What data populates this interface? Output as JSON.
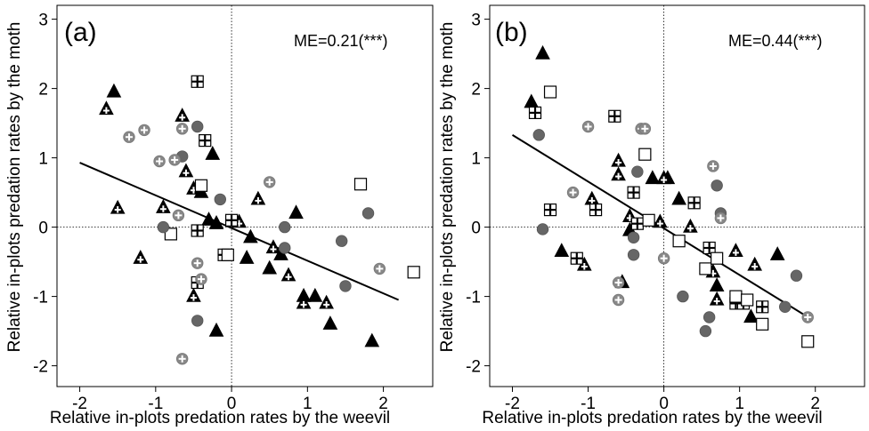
{
  "chart_data": [
    {
      "type": "scatter",
      "panel": "(a)",
      "annotation": "ME=0.21(***)",
      "xlabel": "Relative in-plots predation rates by the weevil",
      "ylabel": "Relative in-plots predation rates by the moth",
      "xlim": [
        -2.3,
        2.65
      ],
      "ylim": [
        -2.3,
        3.2
      ],
      "xticks": [
        -2,
        -1,
        0,
        1,
        2
      ],
      "yticks": [
        -2,
        -1,
        0,
        1,
        2,
        3
      ],
      "fit_line": {
        "x1": -2.0,
        "y1": 0.93,
        "x2": 2.2,
        "y2": -1.05
      },
      "groups": [
        {
          "marker": "filled-triangle",
          "points": [
            [
              -1.55,
              1.95
            ],
            [
              -0.25,
              1.05
            ],
            [
              -0.2,
              -1.5
            ],
            [
              0.2,
              -0.45
            ],
            [
              0.25,
              -0.15
            ],
            [
              0.5,
              -0.6
            ],
            [
              0.65,
              -0.4
            ],
            [
              0.85,
              0.2
            ],
            [
              0.95,
              -1.0
            ],
            [
              1.1,
              -1.0
            ],
            [
              1.3,
              -1.4
            ],
            [
              1.85,
              -1.65
            ],
            [
              -0.3,
              0.1
            ],
            [
              -0.4,
              0.5
            ],
            [
              -0.2,
              0.05
            ]
          ]
        },
        {
          "marker": "cross-triangle",
          "points": [
            [
              -1.65,
              1.7
            ],
            [
              -1.5,
              0.27
            ],
            [
              -1.2,
              -0.45
            ],
            [
              -0.9,
              0.28
            ],
            [
              -0.65,
              1.6
            ],
            [
              -0.6,
              0.8
            ],
            [
              -0.5,
              0.55
            ],
            [
              0.1,
              0.07
            ],
            [
              0.35,
              0.4
            ],
            [
              0.55,
              -0.3
            ],
            [
              0.75,
              -0.7
            ],
            [
              0.95,
              -1.1
            ],
            [
              1.25,
              -1.1
            ],
            [
              -0.5,
              -1.0
            ]
          ]
        },
        {
          "marker": "cross-square",
          "points": [
            [
              -0.45,
              2.1
            ],
            [
              -0.35,
              1.25
            ],
            [
              -0.45,
              -0.05
            ],
            [
              -0.45,
              -0.8
            ],
            [
              -0.1,
              -0.4
            ],
            [
              0.0,
              0.1
            ]
          ]
        },
        {
          "marker": "open-square",
          "points": [
            [
              -0.8,
              -0.1
            ],
            [
              -0.4,
              0.6
            ],
            [
              -0.05,
              -0.4
            ],
            [
              1.7,
              0.62
            ],
            [
              2.4,
              -0.65
            ]
          ]
        },
        {
          "marker": "filled-circle",
          "points": [
            [
              -0.9,
              0.0
            ],
            [
              -0.65,
              1.02
            ],
            [
              -0.45,
              1.45
            ],
            [
              -0.45,
              -1.35
            ],
            [
              -0.15,
              0.4
            ],
            [
              0.7,
              0.0
            ],
            [
              0.7,
              -0.3
            ],
            [
              1.45,
              -0.2
            ],
            [
              1.5,
              -0.85
            ],
            [
              1.8,
              0.2
            ]
          ]
        },
        {
          "marker": "cross-circle",
          "points": [
            [
              -1.35,
              1.3
            ],
            [
              -1.15,
              1.4
            ],
            [
              -0.95,
              0.95
            ],
            [
              -0.75,
              0.97
            ],
            [
              -0.65,
              1.42
            ],
            [
              -0.7,
              0.17
            ],
            [
              -0.45,
              -0.52
            ],
            [
              -0.4,
              -0.75
            ],
            [
              -0.65,
              -1.9
            ],
            [
              0.5,
              0.65
            ],
            [
              1.95,
              -0.6
            ]
          ]
        }
      ]
    },
    {
      "type": "scatter",
      "panel": "(b)",
      "annotation": "ME=0.44(***)",
      "xlabel": "Relative in-plots predation rates by the weevil",
      "ylabel": "Relative in-plots predation rates by the moth",
      "xlim": [
        -2.3,
        2.65
      ],
      "ylim": [
        -2.3,
        3.2
      ],
      "xticks": [
        -2,
        -1,
        0,
        1,
        2
      ],
      "yticks": [
        -2,
        -1,
        0,
        1,
        2,
        3
      ],
      "fit_line": {
        "x1": -2.0,
        "y1": 1.33,
        "x2": 1.95,
        "y2": -1.33
      },
      "groups": [
        {
          "marker": "filled-triangle",
          "points": [
            [
              -1.75,
              1.8
            ],
            [
              -1.6,
              2.5
            ],
            [
              -1.35,
              -0.35
            ],
            [
              -0.55,
              -0.8
            ],
            [
              -0.45,
              -0.05
            ],
            [
              -0.15,
              0.7
            ],
            [
              0.05,
              0.7
            ],
            [
              0.2,
              0.4
            ],
            [
              0.7,
              -0.85
            ],
            [
              1.15,
              -1.3
            ],
            [
              1.5,
              -0.4
            ]
          ]
        },
        {
          "marker": "cross-triangle",
          "points": [
            [
              -1.05,
              -0.55
            ],
            [
              -0.95,
              0.4
            ],
            [
              -0.6,
              0.95
            ],
            [
              -0.6,
              0.75
            ],
            [
              -0.45,
              0.15
            ],
            [
              0.0,
              0.7
            ],
            [
              0.35,
              0.0
            ],
            [
              0.65,
              -0.65
            ],
            [
              0.7,
              -1.05
            ],
            [
              0.95,
              -0.35
            ],
            [
              1.2,
              -0.55
            ],
            [
              -0.05,
              0.07
            ]
          ]
        },
        {
          "marker": "cross-square",
          "points": [
            [
              -1.7,
              1.65
            ],
            [
              -1.5,
              0.25
            ],
            [
              -1.15,
              -0.45
            ],
            [
              -0.9,
              0.25
            ],
            [
              -0.65,
              1.6
            ],
            [
              -0.4,
              0.5
            ],
            [
              -0.35,
              0.05
            ],
            [
              0.4,
              0.35
            ],
            [
              0.6,
              -0.3
            ],
            [
              0.95,
              -1.1
            ],
            [
              1.05,
              -1.1
            ],
            [
              1.3,
              -1.15
            ]
          ]
        },
        {
          "marker": "open-square",
          "points": [
            [
              -1.5,
              1.95
            ],
            [
              -0.25,
              1.05
            ],
            [
              -0.2,
              0.1
            ],
            [
              0.2,
              -0.2
            ],
            [
              0.55,
              -0.6
            ],
            [
              0.7,
              -0.45
            ],
            [
              0.95,
              -1.0
            ],
            [
              1.1,
              -1.05
            ],
            [
              1.3,
              -1.4
            ],
            [
              1.9,
              -1.65
            ]
          ]
        },
        {
          "marker": "filled-circle",
          "points": [
            [
              -1.65,
              1.33
            ],
            [
              -1.6,
              -0.03
            ],
            [
              -0.4,
              -0.4
            ],
            [
              -0.35,
              0.8
            ],
            [
              -0.4,
              -0.15
            ],
            [
              0.25,
              -1.0
            ],
            [
              0.55,
              -1.5
            ],
            [
              0.6,
              -1.3
            ],
            [
              0.7,
              0.6
            ],
            [
              0.75,
              0.2
            ],
            [
              1.6,
              -1.15
            ],
            [
              1.75,
              -0.7
            ]
          ]
        },
        {
          "marker": "cross-circle",
          "points": [
            [
              -1.2,
              0.5
            ],
            [
              -1.0,
              1.45
            ],
            [
              -0.6,
              -0.8
            ],
            [
              -0.6,
              -1.05
            ],
            [
              -0.3,
              1.42
            ],
            [
              -0.25,
              1.42
            ],
            [
              0.0,
              -0.45
            ],
            [
              0.65,
              0.88
            ],
            [
              0.75,
              0.13
            ],
            [
              1.9,
              -1.3
            ]
          ]
        }
      ]
    }
  ]
}
